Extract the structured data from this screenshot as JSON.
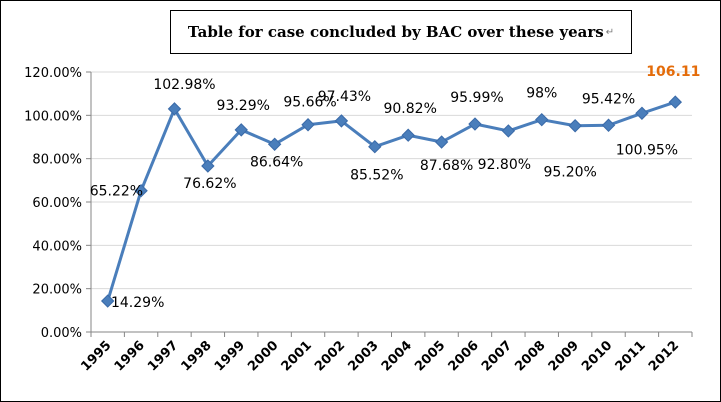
{
  "title": "Table for case concluded by BAC over these years",
  "para_mark": "↵",
  "chart_data": {
    "type": "line",
    "title": "Table for case concluded by BAC over these years",
    "xlabel": "",
    "ylabel": "",
    "ylim": [
      0,
      120
    ],
    "yticks": [
      "0.00%",
      "20.00%",
      "40.00%",
      "60.00%",
      "80.00%",
      "100.00%",
      "120.00%"
    ],
    "grid": true,
    "legend": "none",
    "categories": [
      "1995",
      "1996",
      "1997",
      "1998",
      "1999",
      "2000",
      "2001",
      "2002",
      "2003",
      "2004",
      "2005",
      "2006",
      "2007",
      "2008",
      "2009",
      "2010",
      "2011",
      "2012"
    ],
    "series": [
      {
        "values": [
          14.29,
          65.22,
          102.98,
          76.62,
          93.29,
          86.64,
          95.66,
          97.43,
          85.52,
          90.82,
          87.68,
          95.99,
          92.8,
          98,
          95.2,
          95.42,
          100.95,
          106.11
        ],
        "labels": [
          "14.29%",
          "65.22%",
          "102.98%",
          "76.62%",
          "93.29%",
          "86.64%",
          "95.66%",
          "97.43%",
          "85.52%",
          "90.82%",
          "87.68%",
          "95.99%",
          "92.80%",
          "98%",
          "95.20%",
          "95.42%",
          "100.95%",
          "106.11"
        ],
        "color": "#4a7ebb"
      }
    ],
    "highlight_label_color": "#e46c0a",
    "axis_color": "#868686",
    "grid_color": "#d9d9d9"
  }
}
